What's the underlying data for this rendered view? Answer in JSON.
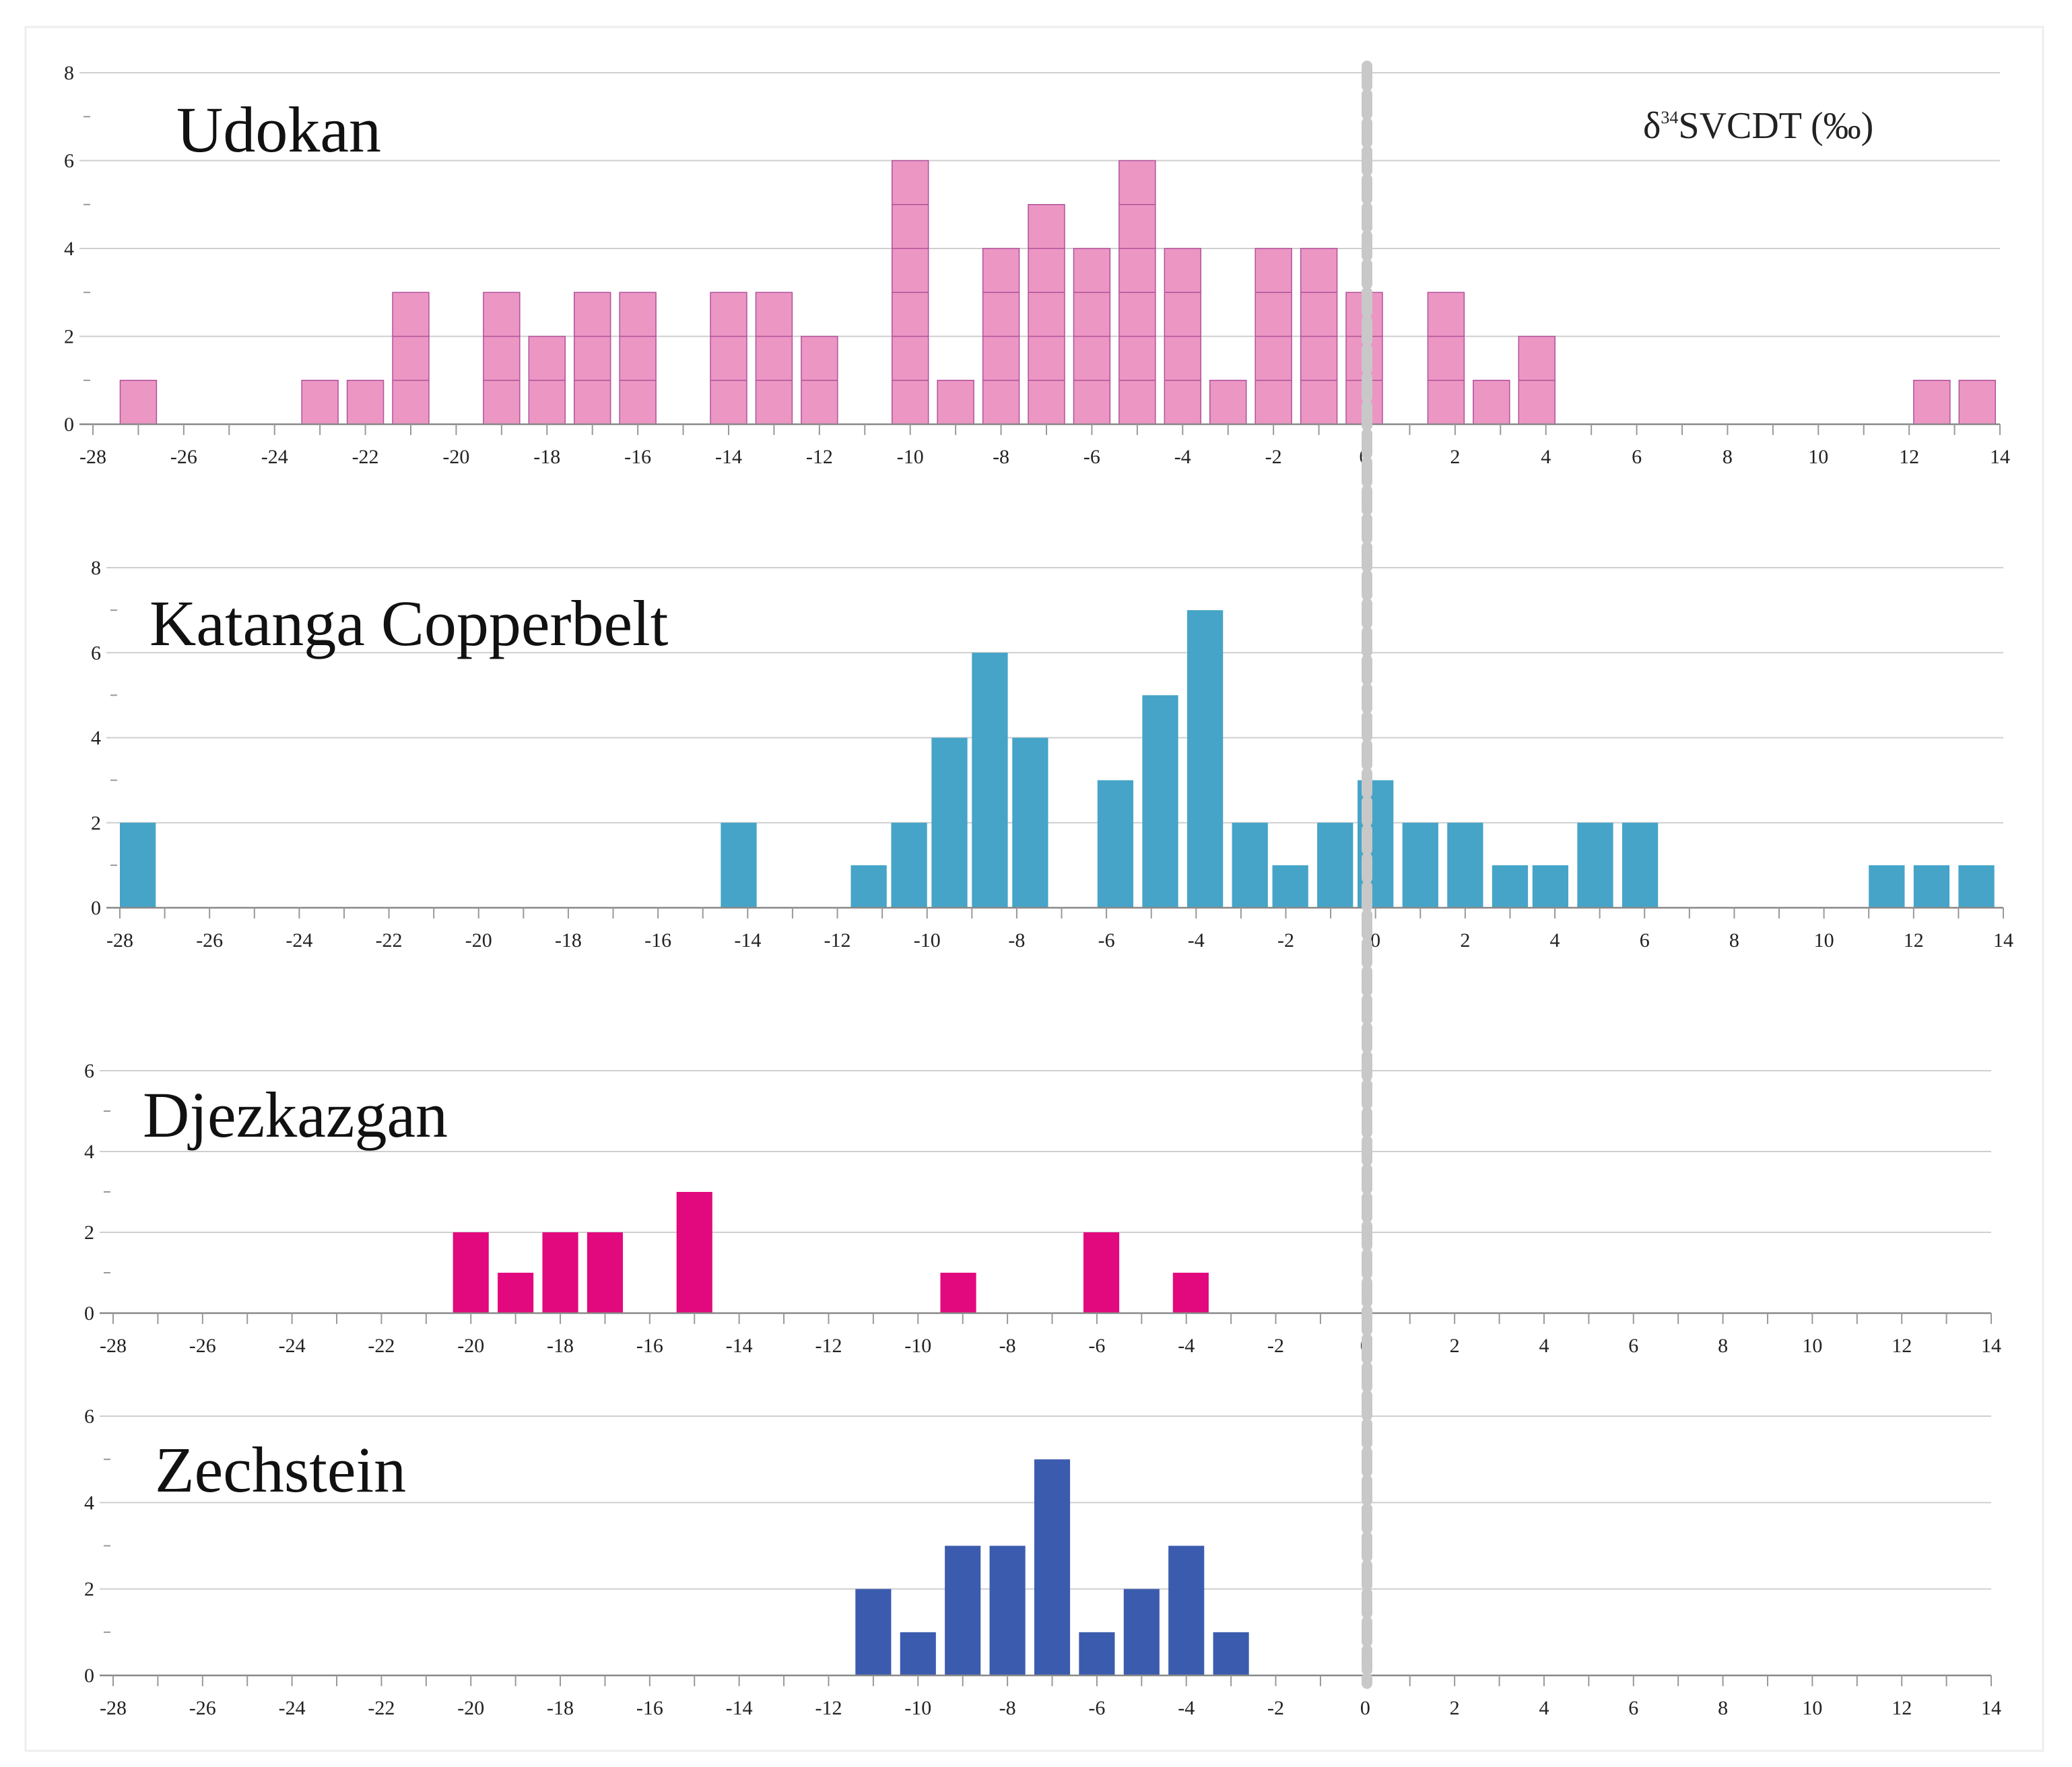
{
  "colors": {
    "background": "#ffffff",
    "zero_line": "#c8c8c8",
    "grid": "#cfcfcf"
  },
  "chart_data": [
    {
      "type": "bar",
      "title": "Udokan",
      "axis_title": "δ34SVCDT (‰)",
      "axis_title_parts": {
        "base": "δ",
        "sup": "34",
        "rest": "SVCDT (‰)"
      },
      "color": "#ec96c4",
      "edge_color": "#b0529a",
      "xlim": [
        -28,
        14
      ],
      "ylim": [
        0,
        8
      ],
      "xticks": [
        -28,
        -26,
        -24,
        -22,
        -20,
        -18,
        -16,
        -14,
        -12,
        -10,
        -8,
        -6,
        -4,
        -2,
        0,
        2,
        4,
        6,
        8,
        10,
        12,
        14
      ],
      "yticks": [
        0,
        2,
        4,
        6,
        8
      ],
      "bars": [
        {
          "x": -27.4,
          "value": 1
        },
        {
          "x": -23.4,
          "value": 1
        },
        {
          "x": -22.4,
          "value": 1
        },
        {
          "x": -21.4,
          "value": 3
        },
        {
          "x": -19.4,
          "value": 3
        },
        {
          "x": -18.4,
          "value": 2
        },
        {
          "x": -17.4,
          "value": 3
        },
        {
          "x": -16.4,
          "value": 3
        },
        {
          "x": -14.4,
          "value": 3
        },
        {
          "x": -13.4,
          "value": 3
        },
        {
          "x": -12.4,
          "value": 2
        },
        {
          "x": -10.4,
          "value": 6
        },
        {
          "x": -9.4,
          "value": 1
        },
        {
          "x": -8.4,
          "value": 4
        },
        {
          "x": -7.4,
          "value": 5
        },
        {
          "x": -6.4,
          "value": 4
        },
        {
          "x": -5.4,
          "value": 6
        },
        {
          "x": -4.4,
          "value": 4
        },
        {
          "x": -3.4,
          "value": 1
        },
        {
          "x": -2.4,
          "value": 4
        },
        {
          "x": -1.4,
          "value": 4
        },
        {
          "x": -0.4,
          "value": 3
        },
        {
          "x": 1.4,
          "value": 3
        },
        {
          "x": 2.4,
          "value": 1
        },
        {
          "x": 3.4,
          "value": 2
        },
        {
          "x": 12.1,
          "value": 1
        },
        {
          "x": 13.1,
          "value": 1
        }
      ]
    },
    {
      "type": "bar",
      "title": "Katanga Copperbelt",
      "color": "#45a4c8",
      "xlim": [
        -28,
        14
      ],
      "ylim": [
        0,
        8
      ],
      "xticks": [
        -28,
        -26,
        -24,
        -22,
        -20,
        -18,
        -16,
        -14,
        -12,
        -10,
        -8,
        -6,
        -4,
        -2,
        0,
        2,
        4,
        6,
        8,
        10,
        12,
        14
      ],
      "yticks": [
        0,
        2,
        4,
        6,
        8
      ],
      "bars": [
        {
          "x": -28.0,
          "value": 2
        },
        {
          "x": -14.6,
          "value": 2
        },
        {
          "x": -11.7,
          "value": 1
        },
        {
          "x": -10.8,
          "value": 2
        },
        {
          "x": -9.9,
          "value": 4
        },
        {
          "x": -9.0,
          "value": 6
        },
        {
          "x": -8.1,
          "value": 4
        },
        {
          "x": -6.2,
          "value": 3
        },
        {
          "x": -5.2,
          "value": 5
        },
        {
          "x": -4.2,
          "value": 7
        },
        {
          "x": -3.2,
          "value": 2
        },
        {
          "x": -2.3,
          "value": 1
        },
        {
          "x": -1.3,
          "value": 2
        },
        {
          "x": -0.4,
          "value": 3
        },
        {
          "x": 0.6,
          "value": 2
        },
        {
          "x": 1.6,
          "value": 2
        },
        {
          "x": 2.6,
          "value": 1
        },
        {
          "x": 3.5,
          "value": 1
        },
        {
          "x": 4.5,
          "value": 2
        },
        {
          "x": 5.5,
          "value": 2
        },
        {
          "x": 11.0,
          "value": 1
        },
        {
          "x": 12.0,
          "value": 1
        },
        {
          "x": 13.0,
          "value": 1
        }
      ]
    },
    {
      "type": "bar",
      "title": "Djezkazgan",
      "color": "#e2087e",
      "xlim": [
        -28,
        14
      ],
      "ylim": [
        0,
        6
      ],
      "xticks": [
        -28,
        -26,
        -24,
        -22,
        -20,
        -18,
        -16,
        -14,
        -12,
        -10,
        -8,
        -6,
        -4,
        -2,
        0,
        2,
        4,
        6,
        8,
        10,
        12,
        14
      ],
      "yticks": [
        0,
        2,
        4,
        6
      ],
      "bars": [
        {
          "x": -20.4,
          "value": 2
        },
        {
          "x": -19.4,
          "value": 1
        },
        {
          "x": -18.4,
          "value": 2
        },
        {
          "x": -17.4,
          "value": 2
        },
        {
          "x": -15.4,
          "value": 3
        },
        {
          "x": -9.5,
          "value": 1
        },
        {
          "x": -6.3,
          "value": 2
        },
        {
          "x": -4.3,
          "value": 1
        }
      ]
    },
    {
      "type": "bar",
      "title": "Zechstein",
      "color": "#3b5cae",
      "xlim": [
        -28,
        14
      ],
      "ylim": [
        0,
        6
      ],
      "xticks": [
        -28,
        -26,
        -24,
        -22,
        -20,
        -18,
        -16,
        -14,
        -12,
        -10,
        -8,
        -6,
        -4,
        -2,
        0,
        2,
        4,
        6,
        8,
        10,
        12,
        14
      ],
      "yticks": [
        0,
        2,
        4,
        6
      ],
      "bars": [
        {
          "x": -11.4,
          "value": 2
        },
        {
          "x": -10.4,
          "value": 1
        },
        {
          "x": -9.4,
          "value": 3
        },
        {
          "x": -8.4,
          "value": 3
        },
        {
          "x": -7.4,
          "value": 5
        },
        {
          "x": -6.4,
          "value": 1
        },
        {
          "x": -5.4,
          "value": 2
        },
        {
          "x": -4.4,
          "value": 3
        },
        {
          "x": -3.4,
          "value": 1
        }
      ]
    }
  ]
}
